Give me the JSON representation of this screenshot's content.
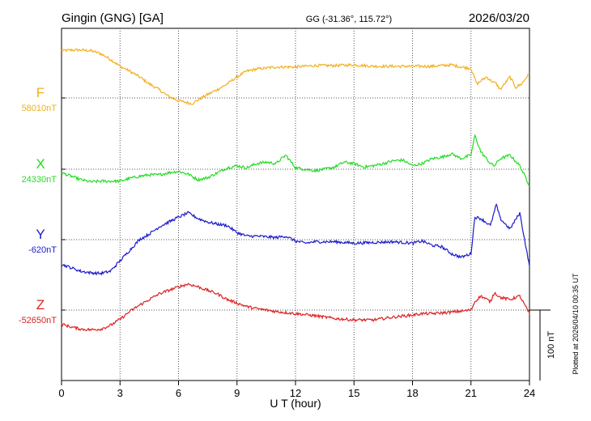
{
  "header": {
    "station": "Gingin (GNG)  [GA]",
    "coords": "GG (-31.36°, 115.72°)",
    "date": "2026/03/20"
  },
  "footer_note": "Plotted at 2026/04/10 00:35 UT",
  "chart_data": {
    "type": "line",
    "xlabel": "U T (hour)",
    "xlim": [
      0,
      24
    ],
    "xticks": [
      "0",
      "3",
      "6",
      "9",
      "12",
      "15",
      "18",
      "21",
      "24"
    ],
    "scale_bar_label": "100 nT",
    "series": [
      {
        "name": "F",
        "baseline_label": "58010nT",
        "color": "#f2b01e",
        "points": [
          [
            0,
            67
          ],
          [
            0.5,
            68
          ],
          [
            1,
            68
          ],
          [
            1.5,
            67
          ],
          [
            2,
            63
          ],
          [
            2.5,
            55
          ],
          [
            3,
            45
          ],
          [
            3.5,
            38
          ],
          [
            4,
            30
          ],
          [
            4.5,
            20
          ],
          [
            5,
            12
          ],
          [
            5.5,
            2
          ],
          [
            6,
            -4
          ],
          [
            6.5,
            -7
          ],
          [
            6.7,
            -8
          ],
          [
            7,
            -3
          ],
          [
            7.5,
            5
          ],
          [
            8,
            12
          ],
          [
            8.5,
            20
          ],
          [
            9,
            30
          ],
          [
            9.5,
            38
          ],
          [
            10,
            41
          ],
          [
            11,
            44
          ],
          [
            12,
            44
          ],
          [
            13,
            46
          ],
          [
            14,
            46
          ],
          [
            15,
            47
          ],
          [
            16,
            45
          ],
          [
            17,
            45
          ],
          [
            18,
            45
          ],
          [
            19,
            45
          ],
          [
            19.5,
            46
          ],
          [
            20,
            47
          ],
          [
            20.5,
            44
          ],
          [
            21,
            42
          ],
          [
            21.3,
            20
          ],
          [
            21.8,
            30
          ],
          [
            22,
            25
          ],
          [
            22.3,
            20
          ],
          [
            22.5,
            12
          ],
          [
            23,
            30
          ],
          [
            23.3,
            15
          ],
          [
            23.6,
            20
          ],
          [
            24,
            35
          ]
        ]
      },
      {
        "name": "X",
        "baseline_label": "24330nT",
        "color": "#22dd22",
        "points": [
          [
            0,
            -5
          ],
          [
            0.5,
            -10
          ],
          [
            1,
            -15
          ],
          [
            1.5,
            -18
          ],
          [
            2,
            -17
          ],
          [
            2.5,
            -17
          ],
          [
            3,
            -17
          ],
          [
            3.5,
            -13
          ],
          [
            4,
            -10
          ],
          [
            4.5,
            -8
          ],
          [
            5,
            -8
          ],
          [
            5.5,
            -5
          ],
          [
            6,
            -3
          ],
          [
            6.5,
            -7
          ],
          [
            7,
            -15
          ],
          [
            7.5,
            -12
          ],
          [
            8,
            -5
          ],
          [
            8.5,
            2
          ],
          [
            9,
            5
          ],
          [
            9.5,
            2
          ],
          [
            10,
            8
          ],
          [
            10.5,
            10
          ],
          [
            11,
            8
          ],
          [
            11.5,
            20
          ],
          [
            12,
            2
          ],
          [
            12.5,
            0
          ],
          [
            13,
            -2
          ],
          [
            13.5,
            0
          ],
          [
            14,
            3
          ],
          [
            14.5,
            10
          ],
          [
            15,
            8
          ],
          [
            15.5,
            3
          ],
          [
            16,
            5
          ],
          [
            16.5,
            8
          ],
          [
            17,
            12
          ],
          [
            17.5,
            13
          ],
          [
            18,
            5
          ],
          [
            18.5,
            8
          ],
          [
            19,
            15
          ],
          [
            19.5,
            17
          ],
          [
            20,
            22
          ],
          [
            20.5,
            15
          ],
          [
            21,
            20
          ],
          [
            21.2,
            48
          ],
          [
            21.5,
            25
          ],
          [
            22,
            8
          ],
          [
            22.2,
            5
          ],
          [
            22.5,
            15
          ],
          [
            23,
            20
          ],
          [
            23.5,
            5
          ],
          [
            24,
            -23
          ]
        ]
      },
      {
        "name": "Y",
        "baseline_label": "-620nT",
        "color": "#1a1acc",
        "points": [
          [
            0,
            -35
          ],
          [
            0.5,
            -40
          ],
          [
            1,
            -45
          ],
          [
            1.5,
            -47
          ],
          [
            2,
            -48
          ],
          [
            2.5,
            -45
          ],
          [
            3,
            -30
          ],
          [
            3.5,
            -15
          ],
          [
            4,
            0
          ],
          [
            4.5,
            8
          ],
          [
            5,
            18
          ],
          [
            5.5,
            25
          ],
          [
            6,
            32
          ],
          [
            6.5,
            38
          ],
          [
            7,
            30
          ],
          [
            7.5,
            25
          ],
          [
            8,
            22
          ],
          [
            8.5,
            20
          ],
          [
            9,
            10
          ],
          [
            9.5,
            5
          ],
          [
            10,
            5
          ],
          [
            11,
            3
          ],
          [
            11.5,
            5
          ],
          [
            12,
            -2
          ],
          [
            12.5,
            -5
          ],
          [
            13,
            -3
          ],
          [
            14,
            -3
          ],
          [
            15,
            -5
          ],
          [
            16,
            -4
          ],
          [
            17,
            -3
          ],
          [
            18,
            -5
          ],
          [
            18.5,
            -2
          ],
          [
            19,
            -8
          ],
          [
            19.5,
            -10
          ],
          [
            20,
            -20
          ],
          [
            20.5,
            -25
          ],
          [
            21,
            -20
          ],
          [
            21.2,
            32
          ],
          [
            21.5,
            30
          ],
          [
            22,
            20
          ],
          [
            22.3,
            50
          ],
          [
            22.5,
            30
          ],
          [
            23,
            15
          ],
          [
            23.5,
            38
          ],
          [
            24,
            -38
          ]
        ]
      },
      {
        "name": "Z",
        "baseline_label": "-52650nT",
        "color": "#dd2222",
        "points": [
          [
            0,
            -20
          ],
          [
            0.5,
            -24
          ],
          [
            1,
            -27
          ],
          [
            1.5,
            -28
          ],
          [
            2,
            -27
          ],
          [
            2.5,
            -22
          ],
          [
            3,
            -13
          ],
          [
            3.5,
            -2
          ],
          [
            4,
            7
          ],
          [
            4.5,
            15
          ],
          [
            5,
            23
          ],
          [
            5.5,
            28
          ],
          [
            6,
            33
          ],
          [
            6.5,
            37
          ],
          [
            7,
            33
          ],
          [
            7.5,
            28
          ],
          [
            8,
            23
          ],
          [
            8.5,
            15
          ],
          [
            9,
            10
          ],
          [
            9.5,
            5
          ],
          [
            10,
            2
          ],
          [
            11,
            -2
          ],
          [
            12,
            -5
          ],
          [
            13,
            -8
          ],
          [
            14,
            -12
          ],
          [
            15,
            -14
          ],
          [
            16,
            -14
          ],
          [
            17,
            -10
          ],
          [
            18,
            -7
          ],
          [
            18.5,
            -5
          ],
          [
            19,
            -5
          ],
          [
            20,
            -3
          ],
          [
            21,
            0
          ],
          [
            21.2,
            12
          ],
          [
            21.5,
            20
          ],
          [
            22,
            12
          ],
          [
            22.2,
            25
          ],
          [
            22.5,
            18
          ],
          [
            23,
            15
          ],
          [
            23.5,
            20
          ],
          [
            24,
            -5
          ]
        ]
      }
    ]
  }
}
